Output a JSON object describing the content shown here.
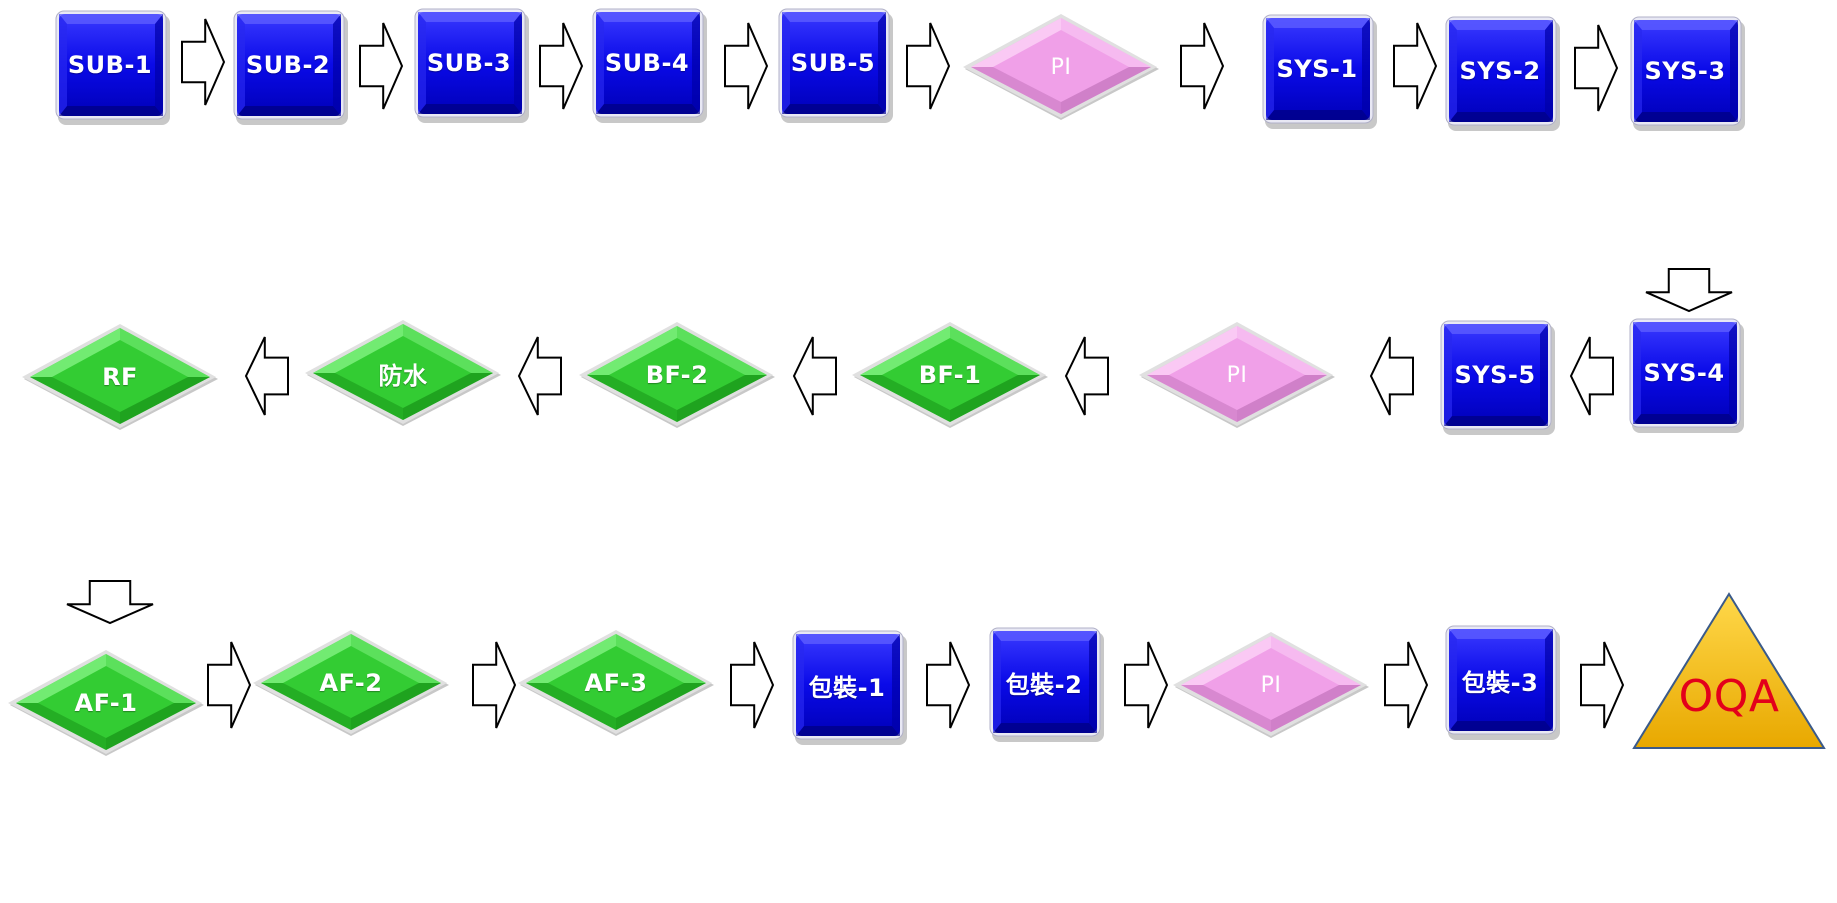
{
  "colors": {
    "box": "#0a0ae8",
    "box_dark": "#000080",
    "diamond_green": "#33cc33",
    "diamond_pink": "#f0a0e8",
    "triangle": "#f5c000",
    "oqa_text": "#e3001b"
  },
  "row1": {
    "sub1": "SUB-1",
    "sub2": "SUB-2",
    "sub3": "SUB-3",
    "sub4": "SUB-4",
    "sub5": "SUB-5",
    "pi": "PI",
    "sys1": "SYS-1",
    "sys2": "SYS-2",
    "sys3": "SYS-3"
  },
  "row2": {
    "sys4": "SYS-4",
    "sys5": "SYS-5",
    "pi": "PI",
    "bf1": "BF-1",
    "bf2": "BF-2",
    "waterproof": "防水",
    "rf": "RF"
  },
  "row3": {
    "af1": "AF-1",
    "af2": "AF-2",
    "af3": "AF-3",
    "pack1": "包裝-1",
    "pack2": "包裝-2",
    "pi": "PI",
    "pack3": "包裝-3",
    "oqa": "OQA"
  }
}
